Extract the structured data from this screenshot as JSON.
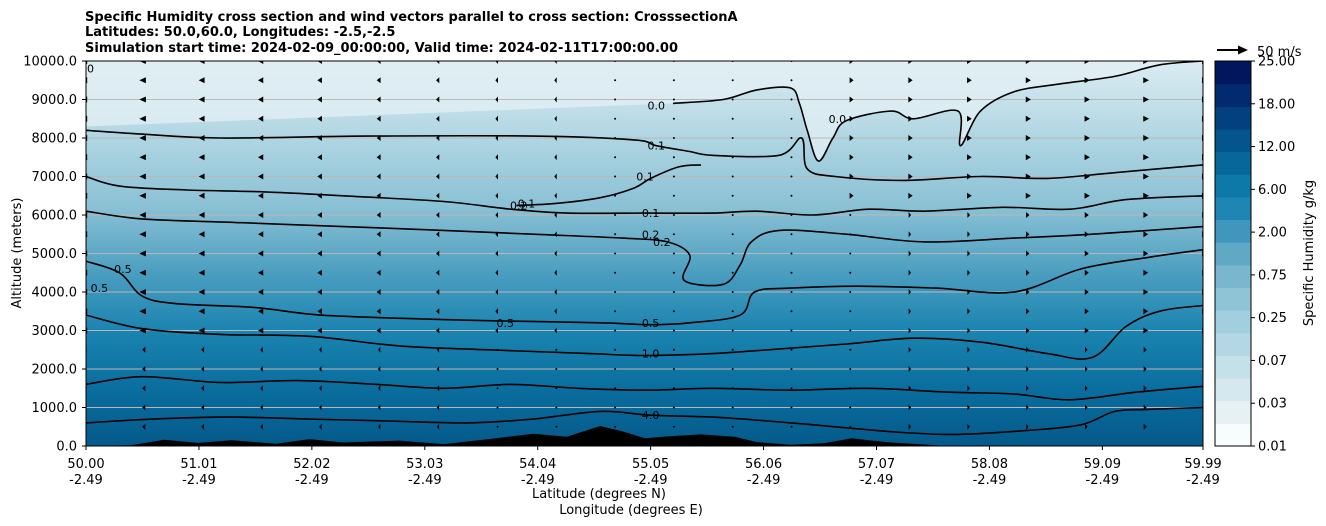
{
  "chart_data": {
    "type": "contourf",
    "title_lines": [
      "Specific Humidity cross section and wind vectors parallel to cross section: CrosssectionA",
      "Latitudes: 50.0,60.0, Longitudes: -2.5,-2.5",
      "Simulation start time: 2024-02-09_00:00:00, Valid time: 2024-02-11T17:00:00.00"
    ],
    "ylabel": "Altitude (meters)",
    "xlabel_lat": "Latitude (degrees N)",
    "xlabel_lon": "Longitude (degrees E)",
    "ylim": [
      0,
      10000
    ],
    "xlim": [
      50.0,
      59.99
    ],
    "y_ticks": [
      "0.0",
      "1000.0",
      "2000.0",
      "3000.0",
      "4000.0",
      "5000.0",
      "6000.0",
      "7000.0",
      "8000.0",
      "9000.0",
      "10000.0"
    ],
    "x_ticks": [
      {
        "lat": "50.00",
        "lon": "-2.49"
      },
      {
        "lat": "51.01",
        "lon": "-2.49"
      },
      {
        "lat": "52.02",
        "lon": "-2.49"
      },
      {
        "lat": "53.03",
        "lon": "-2.49"
      },
      {
        "lat": "54.04",
        "lon": "-2.49"
      },
      {
        "lat": "55.05",
        "lon": "-2.49"
      },
      {
        "lat": "56.06",
        "lon": "-2.49"
      },
      {
        "lat": "57.07",
        "lon": "-2.49"
      },
      {
        "lat": "58.08",
        "lon": "-2.49"
      },
      {
        "lat": "59.09",
        "lon": "-2.49"
      },
      {
        "lat": "59.99",
        "lon": "-2.49"
      }
    ],
    "colorbar": {
      "label": "Specific Humidity g/kg",
      "tick_labels": [
        "0.01",
        "0.03",
        "0.07",
        "0.25",
        "0.75",
        "2.00",
        "6.00",
        "12.00",
        "18.00",
        "25.00"
      ],
      "colors": [
        "#f7fcfd",
        "#e6f1f4",
        "#d5e8ef",
        "#c4e0e9",
        "#b3d7e4",
        "#a2cfdf",
        "#8fc3d6",
        "#7ab7cf",
        "#5fa8c6",
        "#3f97bd",
        "#1f86b3",
        "#0d79a8",
        "#07679b",
        "#04558d",
        "#024080",
        "#012a6f",
        "#00175e"
      ]
    },
    "wind_reference": "50 m/s",
    "contour_labels": [
      {
        "text": "0.0",
        "x": 55.1,
        "y": 8850
      },
      {
        "text": "0.0",
        "x": 56.72,
        "y": 8500
      },
      {
        "text": "0",
        "x": 50.04,
        "y": 9800
      },
      {
        "text": "0.1",
        "x": 55.1,
        "y": 7800
      },
      {
        "text": "0.1",
        "x": 55.0,
        "y": 7000
      },
      {
        "text": "0.1",
        "x": 53.94,
        "y": 6300
      },
      {
        "text": "0.1",
        "x": 55.05,
        "y": 6050
      },
      {
        "text": "0.2",
        "x": 53.87,
        "y": 6250
      },
      {
        "text": "0.2",
        "x": 55.05,
        "y": 5500
      },
      {
        "text": "0.2",
        "x": 55.15,
        "y": 5300
      },
      {
        "text": "0.5",
        "x": 50.33,
        "y": 4600
      },
      {
        "text": "0.5",
        "x": 50.12,
        "y": 4100
      },
      {
        "text": "0.5",
        "x": 53.75,
        "y": 3200
      },
      {
        "text": "0.5",
        "x": 55.05,
        "y": 3200
      },
      {
        "text": "1.0",
        "x": 55.05,
        "y": 2400
      },
      {
        "text": "4.0",
        "x": 55.05,
        "y": 800
      }
    ],
    "contours": [
      {
        "level": "0.0",
        "points": [
          [
            55.25,
            8900
          ],
          [
            55.7,
            9000
          ],
          [
            56.0,
            9250
          ],
          [
            56.3,
            9300
          ],
          [
            56.38,
            8900
          ],
          [
            56.45,
            8200
          ],
          [
            56.55,
            7400
          ],
          [
            56.68,
            8000
          ],
          [
            56.8,
            8450
          ],
          [
            57.2,
            8700
          ],
          [
            57.4,
            8500
          ],
          [
            57.8,
            8700
          ],
          [
            57.82,
            7800
          ],
          [
            58.0,
            8700
          ],
          [
            58.3,
            9200
          ],
          [
            58.7,
            9400
          ],
          [
            59.2,
            9600
          ],
          [
            59.6,
            9900
          ],
          [
            59.99,
            10000
          ]
        ]
      },
      {
        "level": "0.1",
        "points": [
          [
            50.0,
            8200
          ],
          [
            50.5,
            8100
          ],
          [
            51.2,
            8000
          ],
          [
            52.5,
            8050
          ],
          [
            54.0,
            8050
          ],
          [
            54.9,
            7950
          ],
          [
            55.1,
            7800
          ],
          [
            55.4,
            7650
          ],
          [
            55.6,
            7550
          ],
          [
            56.2,
            7550
          ],
          [
            56.4,
            8000
          ],
          [
            56.45,
            7200
          ],
          [
            56.7,
            7000
          ],
          [
            57.3,
            6900
          ],
          [
            58.0,
            7000
          ],
          [
            58.6,
            6950
          ],
          [
            59.2,
            7100
          ],
          [
            59.99,
            7300
          ]
        ]
      },
      {
        "level": "0.1",
        "points": [
          [
            53.85,
            6250
          ],
          [
            54.2,
            6300
          ],
          [
            54.6,
            6450
          ],
          [
            54.9,
            6700
          ],
          [
            55.05,
            6950
          ],
          [
            55.3,
            7250
          ],
          [
            55.5,
            7300
          ]
        ]
      },
      {
        "level": "0.1",
        "points": [
          [
            50.0,
            7000
          ],
          [
            50.3,
            6750
          ],
          [
            50.9,
            6650
          ],
          [
            51.6,
            6600
          ],
          [
            52.3,
            6500
          ],
          [
            53.2,
            6350
          ],
          [
            53.8,
            6150
          ],
          [
            54.3,
            6050
          ],
          [
            55.0,
            6050
          ],
          [
            55.6,
            6050
          ],
          [
            56.0,
            6100
          ],
          [
            56.5,
            6000
          ],
          [
            57.0,
            6150
          ],
          [
            57.5,
            6100
          ],
          [
            58.2,
            6200
          ],
          [
            58.8,
            6150
          ],
          [
            59.3,
            6400
          ],
          [
            59.99,
            6500
          ]
        ]
      },
      {
        "level": "0.2",
        "points": [
          [
            50.0,
            6100
          ],
          [
            50.5,
            5900
          ],
          [
            51.4,
            5800
          ],
          [
            52.3,
            5700
          ],
          [
            53.2,
            5600
          ],
          [
            54.0,
            5500
          ],
          [
            54.8,
            5400
          ],
          [
            55.2,
            5300
          ],
          [
            55.4,
            4950
          ],
          [
            55.35,
            4300
          ],
          [
            55.7,
            4200
          ],
          [
            55.85,
            4700
          ],
          [
            55.95,
            5300
          ],
          [
            56.2,
            5600
          ],
          [
            56.8,
            5500
          ],
          [
            57.5,
            5300
          ],
          [
            58.3,
            5400
          ],
          [
            59.0,
            5500
          ],
          [
            59.99,
            5700
          ]
        ]
      },
      {
        "level": "0.5",
        "points": [
          [
            50.0,
            4800
          ],
          [
            50.3,
            4500
          ],
          [
            50.5,
            3900
          ],
          [
            50.8,
            3700
          ],
          [
            51.5,
            3600
          ],
          [
            52.1,
            3400
          ],
          [
            53.0,
            3300
          ],
          [
            53.7,
            3250
          ],
          [
            54.6,
            3200
          ],
          [
            55.05,
            3150
          ],
          [
            55.4,
            3200
          ],
          [
            55.85,
            3400
          ],
          [
            55.98,
            4000
          ],
          [
            56.3,
            4100
          ],
          [
            56.9,
            4150
          ],
          [
            57.6,
            4100
          ],
          [
            58.3,
            4000
          ],
          [
            58.9,
            4600
          ],
          [
            59.5,
            4900
          ],
          [
            59.99,
            5100
          ]
        ]
      },
      {
        "level": "1.0",
        "points": [
          [
            50.0,
            3400
          ],
          [
            50.5,
            3050
          ],
          [
            51.2,
            2900
          ],
          [
            52.0,
            2850
          ],
          [
            52.8,
            2600
          ],
          [
            53.6,
            2500
          ],
          [
            54.5,
            2400
          ],
          [
            55.0,
            2350
          ],
          [
            55.6,
            2400
          ],
          [
            56.1,
            2500
          ],
          [
            56.8,
            2650
          ],
          [
            57.4,
            2800
          ],
          [
            58.0,
            2700
          ],
          [
            58.6,
            2400
          ],
          [
            59.0,
            2300
          ],
          [
            59.3,
            3100
          ],
          [
            59.6,
            3500
          ],
          [
            59.99,
            3650
          ]
        ]
      },
      {
        "level": "2.0",
        "points": [
          [
            50.0,
            1600
          ],
          [
            50.5,
            1800
          ],
          [
            51.2,
            1650
          ],
          [
            51.9,
            1700
          ],
          [
            52.6,
            1600
          ],
          [
            53.2,
            1500
          ],
          [
            53.8,
            1600
          ],
          [
            54.4,
            1500
          ],
          [
            55.0,
            1450
          ],
          [
            55.6,
            1500
          ],
          [
            56.3,
            1450
          ],
          [
            57.0,
            1500
          ],
          [
            57.7,
            1400
          ],
          [
            58.3,
            1350
          ],
          [
            58.8,
            1200
          ],
          [
            59.4,
            1400
          ],
          [
            59.99,
            1550
          ]
        ]
      },
      {
        "level": "4.0",
        "points": [
          [
            50.0,
            600
          ],
          [
            50.6,
            700
          ],
          [
            51.3,
            750
          ],
          [
            52.0,
            700
          ],
          [
            52.7,
            650
          ],
          [
            53.4,
            600
          ],
          [
            54.0,
            700
          ],
          [
            54.6,
            900
          ],
          [
            55.05,
            800
          ],
          [
            55.6,
            750
          ],
          [
            56.1,
            650
          ],
          [
            56.7,
            500
          ],
          [
            57.3,
            350
          ],
          [
            57.8,
            300
          ],
          [
            58.4,
            400
          ],
          [
            58.9,
            550
          ],
          [
            59.2,
            900
          ],
          [
            59.5,
            950
          ],
          [
            59.99,
            1000
          ]
        ]
      }
    ],
    "terrain": [
      [
        50.0,
        0
      ],
      [
        50.4,
        20
      ],
      [
        50.7,
        160
      ],
      [
        51.0,
        80
      ],
      [
        51.3,
        150
      ],
      [
        51.7,
        60
      ],
      [
        52.0,
        180
      ],
      [
        52.3,
        90
      ],
      [
        52.8,
        140
      ],
      [
        53.2,
        50
      ],
      [
        53.6,
        180
      ],
      [
        54.0,
        320
      ],
      [
        54.3,
        240
      ],
      [
        54.6,
        520
      ],
      [
        54.8,
        380
      ],
      [
        55.0,
        200
      ],
      [
        55.2,
        250
      ],
      [
        55.5,
        300
      ],
      [
        55.8,
        240
      ],
      [
        56.0,
        100
      ],
      [
        56.3,
        30
      ],
      [
        56.6,
        70
      ],
      [
        56.85,
        200
      ],
      [
        57.0,
        150
      ],
      [
        57.2,
        90
      ],
      [
        57.5,
        40
      ],
      [
        57.7,
        0
      ],
      [
        59.99,
        0
      ]
    ]
  }
}
